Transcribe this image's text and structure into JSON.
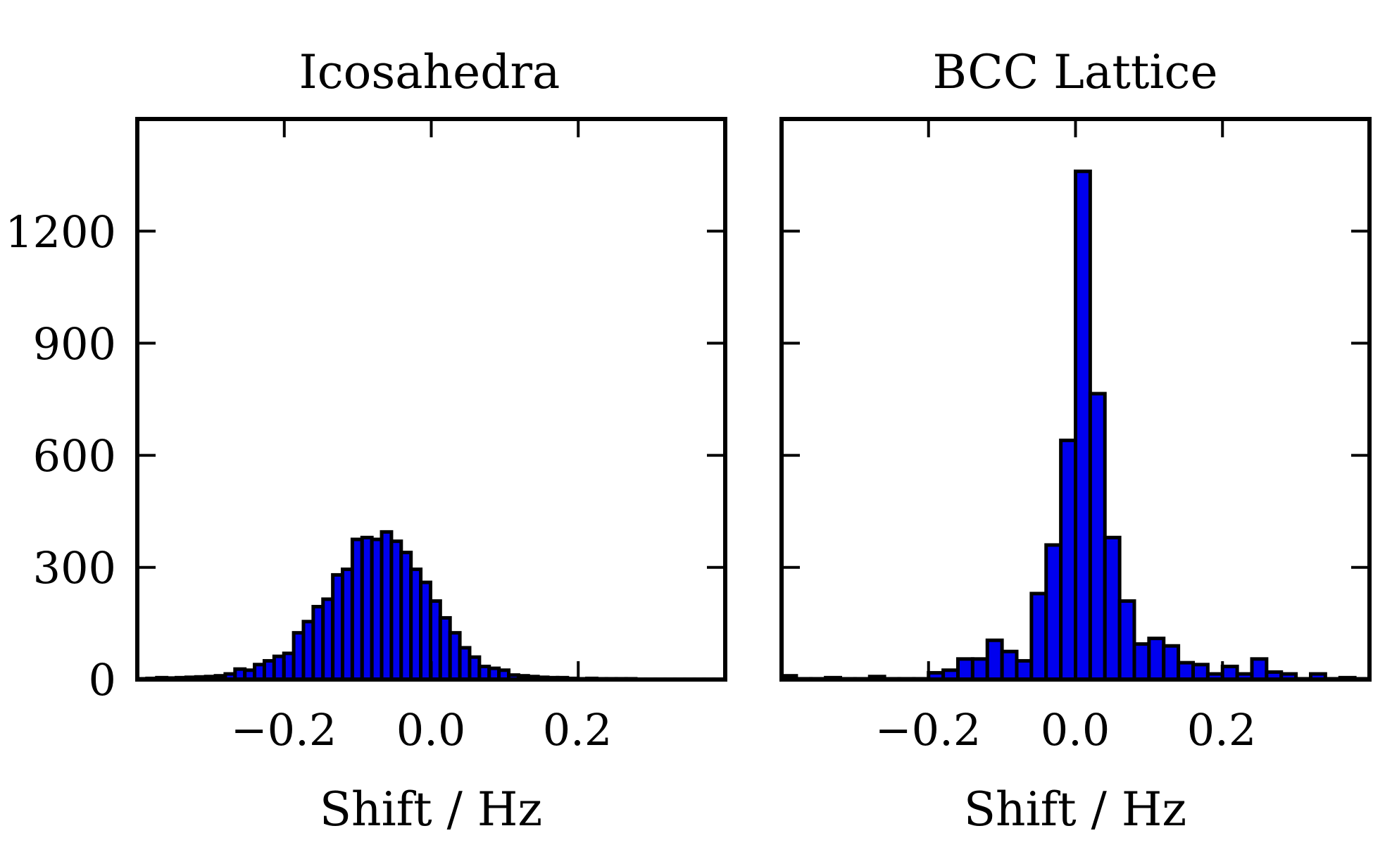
{
  "chart_data": [
    {
      "type": "bar",
      "title": "Icosahedra",
      "xlabel": "Shift / Hz",
      "ylabel": "",
      "xlim": [
        -0.4,
        0.4
      ],
      "ylim": [
        0,
        1500
      ],
      "x_ticks": [
        -0.2,
        0.0,
        0.2
      ],
      "x_tick_labels": [
        "−0.2",
        "0.0",
        "0.2"
      ],
      "y_ticks": [
        0,
        300,
        600,
        900,
        1200
      ],
      "y_tick_labels": [
        "0",
        "300",
        "600",
        "900",
        "1200"
      ],
      "bar_color": "#0000ee",
      "bin_width": 0.0133,
      "bin_edges_start": -0.4,
      "values": [
        2,
        3,
        5,
        4,
        5,
        6,
        7,
        8,
        10,
        15,
        28,
        25,
        40,
        50,
        62,
        70,
        125,
        155,
        195,
        215,
        280,
        295,
        375,
        380,
        375,
        395,
        370,
        340,
        295,
        260,
        210,
        165,
        125,
        85,
        60,
        35,
        30,
        25,
        12,
        10,
        8,
        6,
        5,
        5,
        3,
        2,
        3,
        2,
        2,
        2,
        2,
        1,
        1,
        1,
        1,
        1,
        1,
        1,
        1,
        1
      ]
    },
    {
      "type": "bar",
      "title": "BCC Lattice",
      "xlabel": "Shift / Hz",
      "ylabel": "",
      "xlim": [
        -0.4,
        0.4
      ],
      "ylim": [
        0,
        1500
      ],
      "x_ticks": [
        -0.2,
        0.0,
        0.2
      ],
      "x_tick_labels": [
        "−0.2",
        "0.0",
        "0.2"
      ],
      "y_ticks": [
        0,
        300,
        600,
        900,
        1200
      ],
      "y_tick_labels": [
        "0",
        "300",
        "600",
        "900",
        "1200"
      ],
      "bar_color": "#0000ee",
      "bin_width": 0.02,
      "bin_edges_start": -0.4,
      "values": [
        10,
        2,
        2,
        5,
        2,
        2,
        8,
        2,
        2,
        2,
        18,
        25,
        55,
        55,
        105,
        75,
        50,
        230,
        360,
        640,
        1360,
        765,
        380,
        210,
        95,
        110,
        90,
        45,
        40,
        15,
        35,
        15,
        55,
        20,
        15,
        2,
        15,
        2,
        5,
        2
      ]
    }
  ]
}
